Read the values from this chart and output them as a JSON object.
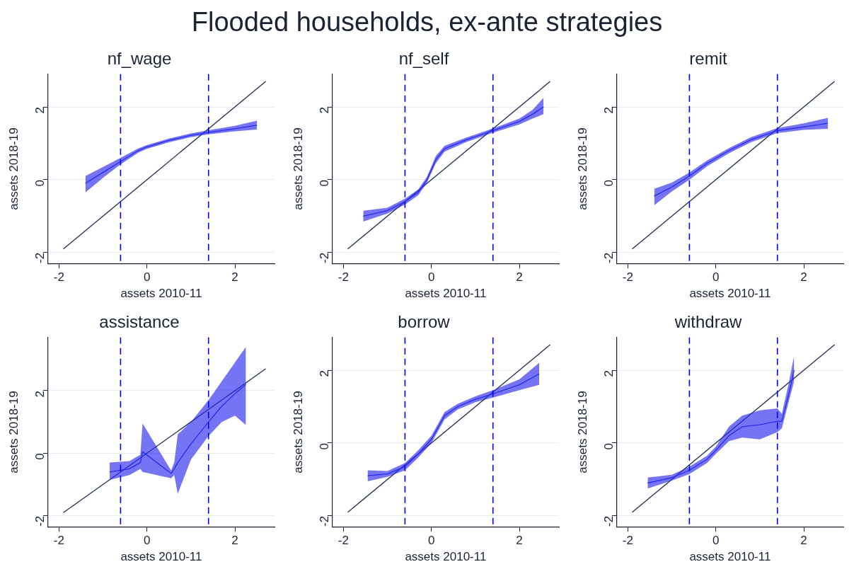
{
  "chart_data": [
    {
      "type": "line",
      "title": "nf_wage",
      "xlabel": "assets 2010-11",
      "ylabel": "assets 2018-19",
      "annotations": [
        "Flooded households, ex-ante strategies"
      ],
      "xlim": [
        -2.25,
        2.9
      ],
      "ylim": [
        -2.3,
        2.9
      ],
      "xticks": [
        -2,
        0,
        2
      ],
      "yticks": [
        -2,
        0,
        2
      ],
      "grid": "y",
      "marker": "none",
      "ref_lines": [
        {
          "axis": "x",
          "value": -0.6,
          "color": "#0000ff",
          "line_style": "dashed"
        },
        {
          "axis": "x",
          "value": 1.4,
          "color": "#0000ff",
          "line_style": "dashed"
        }
      ],
      "series": [
        {
          "color": "#2a2af0",
          "x": [
            -1.4,
            -1,
            -0.6,
            -0.2,
            0,
            0.5,
            1,
            1.4,
            2,
            2.5
          ],
          "values": [
            -0.1,
            0.2,
            0.5,
            0.8,
            0.9,
            1.08,
            1.22,
            1.3,
            1.4,
            1.5
          ],
          "lower": [
            -0.35,
            0.05,
            0.42,
            0.74,
            0.85,
            1.03,
            1.17,
            1.25,
            1.33,
            1.38
          ],
          "upper": [
            0.1,
            0.35,
            0.6,
            0.86,
            0.95,
            1.13,
            1.27,
            1.36,
            1.48,
            1.62
          ]
        },
        {
          "color": "#1f2d4d",
          "x": [
            -1.9,
            2.7
          ],
          "values": [
            -1.9,
            2.7
          ]
        }
      ]
    },
    {
      "type": "line",
      "title": "nf_self",
      "xlabel": "assets 2010-11",
      "ylabel": "assets 2018-19",
      "xlim": [
        -2.25,
        2.9
      ],
      "ylim": [
        -2.3,
        2.9
      ],
      "xticks": [
        -2,
        0,
        2
      ],
      "yticks": [
        -2,
        0,
        2
      ],
      "grid": "y",
      "marker": "none",
      "ref_lines": [
        {
          "axis": "x",
          "value": -0.6,
          "color": "#0000ff",
          "line_style": "dashed"
        },
        {
          "axis": "x",
          "value": 1.4,
          "color": "#0000ff",
          "line_style": "dashed"
        }
      ],
      "series": [
        {
          "color": "#2a2af0",
          "x": [
            -1.55,
            -1,
            -0.6,
            -0.3,
            -0.1,
            0.1,
            0.3,
            0.8,
            1.4,
            2,
            2.3,
            2.55
          ],
          "values": [
            -1,
            -0.85,
            -0.6,
            -0.35,
            0,
            0.55,
            0.85,
            1.1,
            1.35,
            1.6,
            1.8,
            2
          ],
          "lower": [
            -1.15,
            -0.93,
            -0.68,
            -0.43,
            -0.08,
            0.45,
            0.77,
            1.04,
            1.29,
            1.52,
            1.68,
            1.8
          ],
          "upper": [
            -0.85,
            -0.77,
            -0.52,
            -0.27,
            0.08,
            0.65,
            0.93,
            1.16,
            1.41,
            1.68,
            1.92,
            2.25
          ]
        },
        {
          "color": "#1f2d4d",
          "x": [
            -1.9,
            2.7
          ],
          "values": [
            -1.9,
            2.7
          ]
        }
      ]
    },
    {
      "type": "line",
      "title": "remit",
      "xlabel": "assets 2010-11",
      "ylabel": "assets 2018-19",
      "xlim": [
        -2.25,
        2.9
      ],
      "ylim": [
        -2.3,
        2.9
      ],
      "xticks": [
        -2,
        0,
        2
      ],
      "yticks": [
        -2,
        0,
        2
      ],
      "grid": "y",
      "marker": "none",
      "ref_lines": [
        {
          "axis": "x",
          "value": -0.6,
          "color": "#0000ff",
          "line_style": "dashed"
        },
        {
          "axis": "x",
          "value": 1.4,
          "color": "#0000ff",
          "line_style": "dashed"
        }
      ],
      "series": [
        {
          "color": "#2a2af0",
          "x": [
            -1.4,
            -1,
            -0.6,
            -0.2,
            0.3,
            0.8,
            1.4,
            2,
            2.55
          ],
          "values": [
            -0.45,
            -0.2,
            0.1,
            0.45,
            0.8,
            1.1,
            1.35,
            1.45,
            1.55
          ],
          "lower": [
            -0.7,
            -0.32,
            0.0,
            0.37,
            0.73,
            1.03,
            1.28,
            1.37,
            1.4
          ],
          "upper": [
            -0.25,
            -0.08,
            0.2,
            0.53,
            0.87,
            1.17,
            1.42,
            1.55,
            1.7
          ]
        },
        {
          "color": "#1f2d4d",
          "x": [
            -1.9,
            2.7
          ],
          "values": [
            -1.9,
            2.7
          ]
        }
      ]
    },
    {
      "type": "line",
      "title": "assistance",
      "xlabel": "assets 2010-11",
      "ylabel": "assets 2018-19",
      "xlim": [
        -2.25,
        2.9
      ],
      "ylim": [
        -2.35,
        3.7
      ],
      "xticks": [
        -2,
        0,
        2
      ],
      "yticks": [
        -2,
        0,
        2
      ],
      "grid": "y",
      "marker": "none",
      "ref_lines": [
        {
          "axis": "x",
          "value": -0.6,
          "color": "#0000ff",
          "line_style": "dashed"
        },
        {
          "axis": "x",
          "value": 1.4,
          "color": "#0000ff",
          "line_style": "dashed"
        }
      ],
      "series": [
        {
          "color": "#2a2af0",
          "x": [
            -0.85,
            -0.4,
            -0.15,
            -0.1,
            0.55,
            0.62,
            0.7,
            1,
            1.4,
            1.7,
            2,
            2.25
          ],
          "values": [
            -0.6,
            -0.5,
            -0.3,
            0.05,
            -0.65,
            -0.5,
            -0.3,
            0.3,
            1,
            1.5,
            1.9,
            2.2
          ],
          "lower": [
            -0.85,
            -0.7,
            -0.5,
            -0.6,
            -0.8,
            -0.7,
            -1.3,
            -0.2,
            0.55,
            1,
            1.2,
            0.9
          ],
          "upper": [
            -0.3,
            -0.25,
            -0.05,
            0.95,
            -0.55,
            -0.3,
            0.6,
            1,
            1.7,
            2.3,
            2.9,
            3.4
          ]
        },
        {
          "color": "#1f2d4d",
          "x": [
            -1.9,
            2.7
          ],
          "values": [
            -1.9,
            2.7
          ]
        }
      ]
    },
    {
      "type": "line",
      "title": "borrow",
      "xlabel": "assets 2010-11",
      "ylabel": "assets 2018-19",
      "xlim": [
        -2.25,
        2.9
      ],
      "ylim": [
        -2.3,
        2.9
      ],
      "xticks": [
        -2,
        0,
        2
      ],
      "yticks": [
        -2,
        0,
        2
      ],
      "grid": "y",
      "marker": "none",
      "ref_lines": [
        {
          "axis": "x",
          "value": -0.6,
          "color": "#0000ff",
          "line_style": "dashed"
        },
        {
          "axis": "x",
          "value": 1.4,
          "color": "#0000ff",
          "line_style": "dashed"
        }
      ],
      "series": [
        {
          "color": "#2a2af0",
          "x": [
            -1.45,
            -1,
            -0.6,
            -0.3,
            0,
            0.3,
            0.6,
            1,
            1.4,
            2,
            2.45
          ],
          "values": [
            -0.9,
            -0.85,
            -0.65,
            -0.3,
            0.1,
            0.75,
            1,
            1.2,
            1.35,
            1.6,
            1.9
          ],
          "lower": [
            -1.05,
            -0.93,
            -0.75,
            -0.4,
            0.0,
            0.65,
            0.92,
            1.12,
            1.25,
            1.45,
            1.6
          ],
          "upper": [
            -0.75,
            -0.77,
            -0.55,
            -0.2,
            0.2,
            0.85,
            1.08,
            1.28,
            1.45,
            1.75,
            2.2
          ]
        },
        {
          "color": "#1f2d4d",
          "x": [
            -1.9,
            2.7
          ],
          "values": [
            -1.9,
            2.7
          ]
        }
      ]
    },
    {
      "type": "line",
      "title": "withdraw",
      "xlabel": "assets 2010-11",
      "ylabel": "assets 2018-19",
      "xlim": [
        -2.25,
        2.9
      ],
      "ylim": [
        -2.3,
        2.9
      ],
      "xticks": [
        -2,
        0,
        2
      ],
      "yticks": [
        -2,
        0,
        2
      ],
      "grid": "y",
      "marker": "none",
      "ref_lines": [
        {
          "axis": "x",
          "value": -0.6,
          "color": "#0000ff",
          "line_style": "dashed"
        },
        {
          "axis": "x",
          "value": 1.4,
          "color": "#0000ff",
          "line_style": "dashed"
        }
      ],
      "series": [
        {
          "color": "#2a2af0",
          "x": [
            -1.55,
            -1,
            -0.6,
            -0.2,
            0,
            0.3,
            0.6,
            1,
            1.4,
            1.5,
            1.65,
            1.78
          ],
          "values": [
            -1.1,
            -0.95,
            -0.75,
            -0.45,
            -0.2,
            0.2,
            0.45,
            0.5,
            0.6,
            0.6,
            1.3,
            2
          ],
          "lower": [
            -1.25,
            -1.03,
            -0.85,
            -0.55,
            -0.3,
            0.05,
            0.15,
            0.1,
            0.3,
            0.4,
            1.1,
            1.7
          ],
          "upper": [
            -0.95,
            -0.87,
            -0.65,
            -0.35,
            -0.1,
            0.45,
            0.75,
            0.9,
            0.95,
            0.8,
            1.6,
            2.4
          ]
        },
        {
          "color": "#1f2d4d",
          "x": [
            -1.9,
            2.7
          ],
          "values": [
            -1.9,
            2.7
          ]
        }
      ]
    }
  ]
}
